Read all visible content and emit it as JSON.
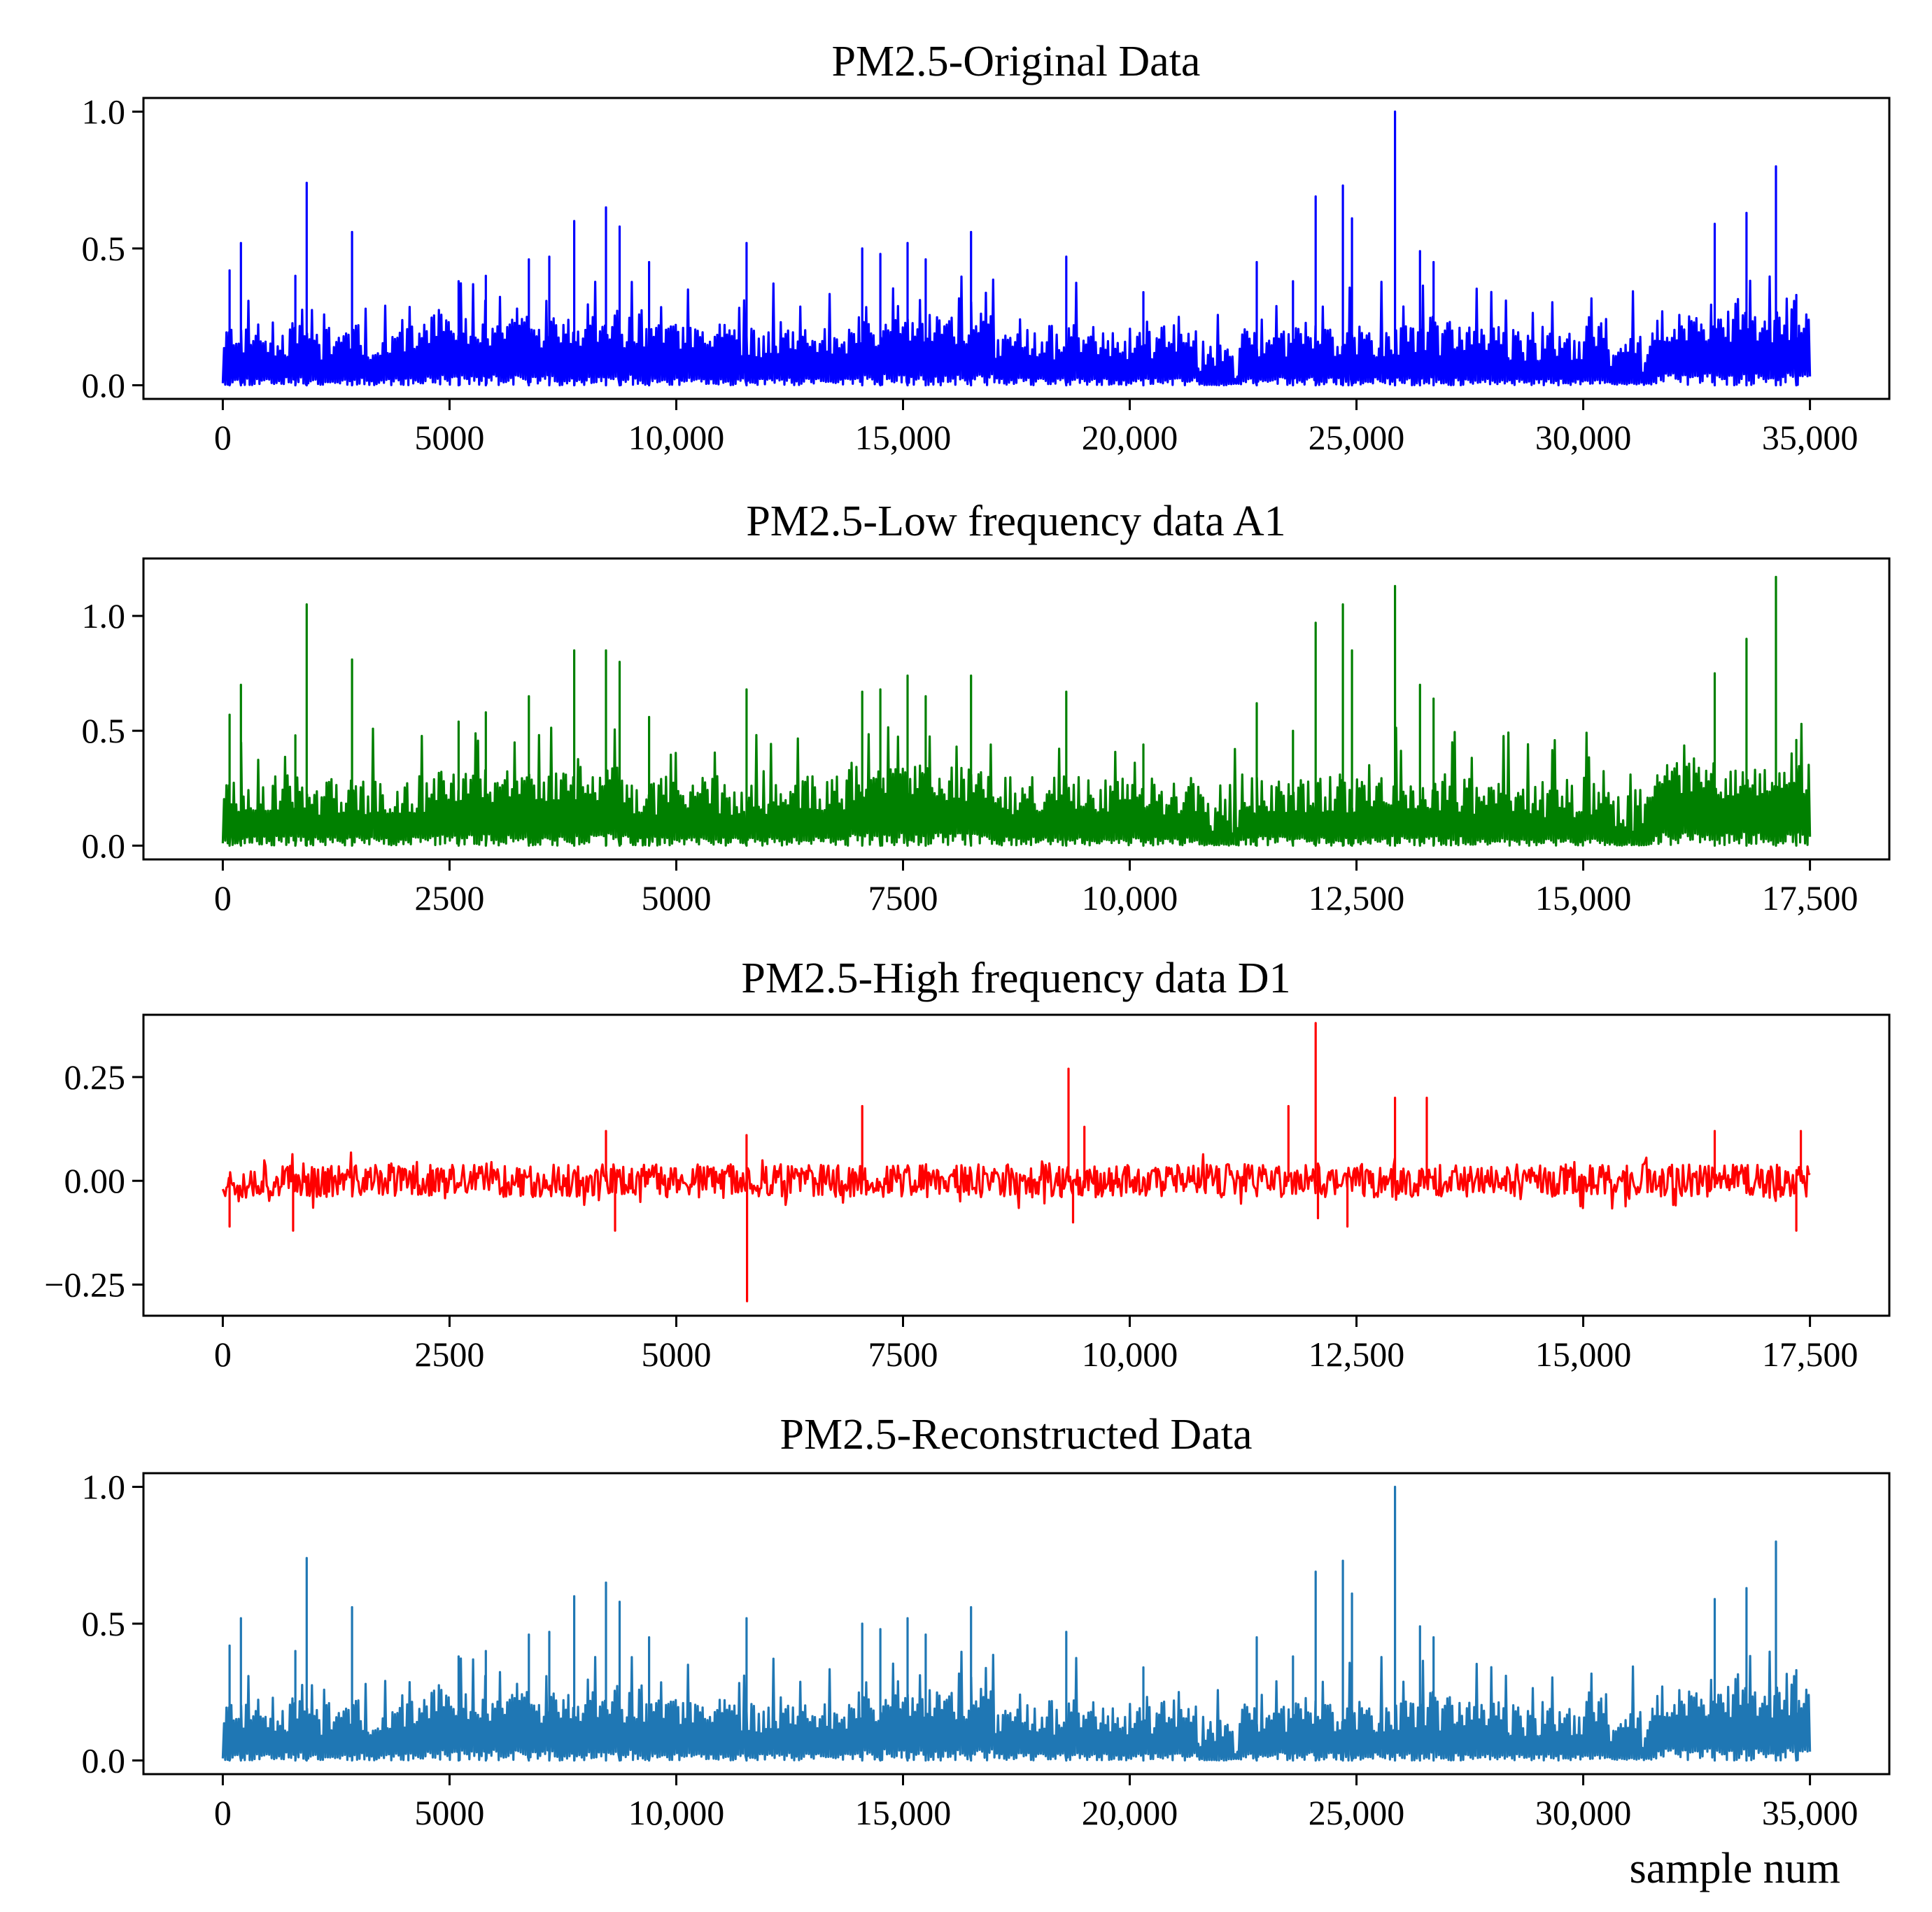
{
  "chart_data": [
    {
      "type": "line",
      "title": "PM2.5-Original Data",
      "color": "#0000ff",
      "xlim": [
        -1750,
        36750
      ],
      "ylim": [
        -0.05,
        1.05
      ],
      "xticks": [
        0,
        5000,
        10000,
        15000,
        20000,
        25000,
        30000,
        35000
      ],
      "xtick_labels": [
        "0",
        "5000",
        "10,000",
        "15,000",
        "20,000",
        "25,000",
        "30,000",
        "35,000"
      ],
      "yticks": [
        0.0,
        0.5,
        1.0
      ],
      "ytick_labels": [
        "0.0",
        "0.5",
        "1.0"
      ],
      "x_range": [
        0,
        35000
      ],
      "baseline": 0.0,
      "noise": {
        "lo": 0.0,
        "hi": 0.15,
        "seed": 11
      },
      "segments": [
        {
          "x": [
            0,
            2000
          ],
          "level": 0.1
        },
        {
          "x": [
            2000,
            4500
          ],
          "level": 0.09
        },
        {
          "x": [
            4500,
            9000
          ],
          "level": 0.13
        },
        {
          "x": [
            9000,
            13800
          ],
          "level": 0.09
        },
        {
          "x": [
            13800,
            17000
          ],
          "level": 0.14
        },
        {
          "x": [
            17000,
            21500
          ],
          "level": 0.09
        },
        {
          "x": [
            21500,
            22400
          ],
          "level": 0.02
        },
        {
          "x": [
            22400,
            27500
          ],
          "level": 0.1
        },
        {
          "x": [
            27500,
            30500
          ],
          "level": 0.08
        },
        {
          "x": [
            30500,
            31500
          ],
          "level": 0.04
        },
        {
          "x": [
            31500,
            35000
          ],
          "level": 0.15
        }
      ],
      "peaks": [
        {
          "x": 150,
          "y": 0.42
        },
        {
          "x": 400,
          "y": 0.52
        },
        {
          "x": 1600,
          "y": 0.4
        },
        {
          "x": 1850,
          "y": 0.74
        },
        {
          "x": 2850,
          "y": 0.56
        },
        {
          "x": 5200,
          "y": 0.38
        },
        {
          "x": 5800,
          "y": 0.4
        },
        {
          "x": 6750,
          "y": 0.46
        },
        {
          "x": 7200,
          "y": 0.47
        },
        {
          "x": 7750,
          "y": 0.6
        },
        {
          "x": 8450,
          "y": 0.65
        },
        {
          "x": 8750,
          "y": 0.58
        },
        {
          "x": 9400,
          "y": 0.45
        },
        {
          "x": 11550,
          "y": 0.52
        },
        {
          "x": 14100,
          "y": 0.5
        },
        {
          "x": 14500,
          "y": 0.48
        },
        {
          "x": 15100,
          "y": 0.52
        },
        {
          "x": 15500,
          "y": 0.46
        },
        {
          "x": 16500,
          "y": 0.56
        },
        {
          "x": 18600,
          "y": 0.47
        },
        {
          "x": 20300,
          "y": 0.34
        },
        {
          "x": 22800,
          "y": 0.45
        },
        {
          "x": 23600,
          "y": 0.38
        },
        {
          "x": 24100,
          "y": 0.69
        },
        {
          "x": 24700,
          "y": 0.73
        },
        {
          "x": 24900,
          "y": 0.61
        },
        {
          "x": 25850,
          "y": 1.0
        },
        {
          "x": 26400,
          "y": 0.49
        },
        {
          "x": 26700,
          "y": 0.45
        },
        {
          "x": 32900,
          "y": 0.59
        },
        {
          "x": 33600,
          "y": 0.63
        },
        {
          "x": 34250,
          "y": 0.8
        },
        {
          "x": 34700,
          "y": 0.33
        }
      ]
    },
    {
      "type": "line",
      "title": "PM2.5-Low frequency data A1",
      "color": "#008000",
      "xlim": [
        -875,
        18375
      ],
      "ylim": [
        -0.06,
        1.25
      ],
      "xticks": [
        0,
        2500,
        5000,
        7500,
        10000,
        12500,
        15000,
        17500
      ],
      "xtick_labels": [
        "0",
        "2500",
        "5000",
        "7500",
        "10,000",
        "12,500",
        "15,000",
        "17,500"
      ],
      "yticks": [
        0.0,
        0.5,
        1.0
      ],
      "ytick_labels": [
        "0.0",
        "0.5",
        "1.0"
      ],
      "x_range": [
        0,
        17500
      ],
      "baseline": 0.0,
      "noise": {
        "lo": 0.0,
        "hi": 0.2,
        "seed": 23
      },
      "segments": [
        {
          "x": [
            0,
            1000
          ],
          "level": 0.14
        },
        {
          "x": [
            1000,
            2250
          ],
          "level": 0.13
        },
        {
          "x": [
            2250,
            4500
          ],
          "level": 0.18
        },
        {
          "x": [
            4500,
            6900
          ],
          "level": 0.13
        },
        {
          "x": [
            6900,
            8500
          ],
          "level": 0.19
        },
        {
          "x": [
            8500,
            10750
          ],
          "level": 0.13
        },
        {
          "x": [
            10750,
            11200
          ],
          "level": 0.03
        },
        {
          "x": [
            11200,
            13750
          ],
          "level": 0.14
        },
        {
          "x": [
            13750,
            15250
          ],
          "level": 0.11
        },
        {
          "x": [
            15250,
            15750
          ],
          "level": 0.05
        },
        {
          "x": [
            15750,
            17500
          ],
          "level": 0.2
        }
      ],
      "peaks": [
        {
          "x": 75,
          "y": 0.57
        },
        {
          "x": 200,
          "y": 0.7
        },
        {
          "x": 800,
          "y": 0.48
        },
        {
          "x": 925,
          "y": 1.05
        },
        {
          "x": 1425,
          "y": 0.81
        },
        {
          "x": 2600,
          "y": 0.54
        },
        {
          "x": 2900,
          "y": 0.58
        },
        {
          "x": 3375,
          "y": 0.65
        },
        {
          "x": 3875,
          "y": 0.85
        },
        {
          "x": 4225,
          "y": 0.85
        },
        {
          "x": 4375,
          "y": 0.8
        },
        {
          "x": 4700,
          "y": 0.56
        },
        {
          "x": 5775,
          "y": 0.68
        },
        {
          "x": 7050,
          "y": 0.67
        },
        {
          "x": 7250,
          "y": 0.68
        },
        {
          "x": 7550,
          "y": 0.74
        },
        {
          "x": 7750,
          "y": 0.65
        },
        {
          "x": 8250,
          "y": 0.74
        },
        {
          "x": 9300,
          "y": 0.67
        },
        {
          "x": 10150,
          "y": 0.44
        },
        {
          "x": 11400,
          "y": 0.62
        },
        {
          "x": 11800,
          "y": 0.5
        },
        {
          "x": 12050,
          "y": 0.97
        },
        {
          "x": 12350,
          "y": 1.05
        },
        {
          "x": 12450,
          "y": 0.85
        },
        {
          "x": 12925,
          "y": 1.13
        },
        {
          "x": 13200,
          "y": 0.7
        },
        {
          "x": 13350,
          "y": 0.64
        },
        {
          "x": 16450,
          "y": 0.75
        },
        {
          "x": 16800,
          "y": 0.9
        },
        {
          "x": 17125,
          "y": 1.17
        },
        {
          "x": 17350,
          "y": 0.46
        }
      ]
    },
    {
      "type": "line",
      "title": "PM2.5-High frequency data D1",
      "color": "#ff0000",
      "xlim": [
        -875,
        18375
      ],
      "ylim": [
        -0.325,
        0.4
      ],
      "xticks": [
        0,
        2500,
        5000,
        7500,
        10000,
        12500,
        15000,
        17500
      ],
      "xtick_labels": [
        "0",
        "2500",
        "5000",
        "7500",
        "10,000",
        "12,500",
        "15,000",
        "17,500"
      ],
      "yticks": [
        -0.25,
        0.0,
        0.25
      ],
      "ytick_labels": [
        "−0.25",
        "0.00",
        "0.25"
      ],
      "x_range": [
        0,
        17500
      ],
      "baseline": 0.0,
      "noise": {
        "lo": -0.04,
        "hi": 0.04,
        "seed": 37
      },
      "segments": [],
      "peaks": [
        {
          "x": 75,
          "y": -0.11
        },
        {
          "x": 775,
          "y": -0.12
        },
        {
          "x": 4225,
          "y": 0.12
        },
        {
          "x": 4325,
          "y": -0.12
        },
        {
          "x": 5775,
          "y": 0.11
        },
        {
          "x": 5780,
          "y": -0.29
        },
        {
          "x": 7050,
          "y": 0.18
        },
        {
          "x": 9325,
          "y": 0.27
        },
        {
          "x": 9375,
          "y": -0.1
        },
        {
          "x": 9500,
          "y": 0.13
        },
        {
          "x": 11750,
          "y": 0.18
        },
        {
          "x": 12050,
          "y": 0.38
        },
        {
          "x": 12075,
          "y": -0.09
        },
        {
          "x": 12400,
          "y": -0.11
        },
        {
          "x": 12925,
          "y": 0.2
        },
        {
          "x": 13275,
          "y": 0.2
        },
        {
          "x": 16450,
          "y": 0.12
        },
        {
          "x": 17400,
          "y": 0.12
        },
        {
          "x": 17350,
          "y": -0.12
        }
      ]
    },
    {
      "type": "line",
      "title": "PM2.5-Reconstructed Data",
      "color": "#1f77b4",
      "xlim": [
        -1750,
        36750
      ],
      "ylim": [
        -0.05,
        1.05
      ],
      "xticks": [
        0,
        5000,
        10000,
        15000,
        20000,
        25000,
        30000,
        35000
      ],
      "xtick_labels": [
        "0",
        "5000",
        "10,000",
        "15,000",
        "20,000",
        "25,000",
        "30,000",
        "35,000"
      ],
      "yticks": [
        0.0,
        0.5,
        1.0
      ],
      "ytick_labels": [
        "0.0",
        "0.5",
        "1.0"
      ],
      "x_range": [
        0,
        35000
      ],
      "baseline": 0.0,
      "noise": {
        "lo": 0.0,
        "hi": 0.15,
        "seed": 11
      },
      "segments": [
        {
          "x": [
            0,
            2000
          ],
          "level": 0.1
        },
        {
          "x": [
            2000,
            4500
          ],
          "level": 0.09
        },
        {
          "x": [
            4500,
            9000
          ],
          "level": 0.13
        },
        {
          "x": [
            9000,
            13800
          ],
          "level": 0.09
        },
        {
          "x": [
            13800,
            17000
          ],
          "level": 0.14
        },
        {
          "x": [
            17000,
            21500
          ],
          "level": 0.09
        },
        {
          "x": [
            21500,
            22400
          ],
          "level": 0.02
        },
        {
          "x": [
            22400,
            27500
          ],
          "level": 0.1
        },
        {
          "x": [
            27500,
            30500
          ],
          "level": 0.08
        },
        {
          "x": [
            30500,
            31500
          ],
          "level": 0.04
        },
        {
          "x": [
            31500,
            35000
          ],
          "level": 0.15
        }
      ],
      "peaks": [
        {
          "x": 150,
          "y": 0.42
        },
        {
          "x": 400,
          "y": 0.52
        },
        {
          "x": 1600,
          "y": 0.4
        },
        {
          "x": 1850,
          "y": 0.74
        },
        {
          "x": 2850,
          "y": 0.56
        },
        {
          "x": 5200,
          "y": 0.38
        },
        {
          "x": 5800,
          "y": 0.4
        },
        {
          "x": 6750,
          "y": 0.46
        },
        {
          "x": 7200,
          "y": 0.47
        },
        {
          "x": 7750,
          "y": 0.6
        },
        {
          "x": 8450,
          "y": 0.65
        },
        {
          "x": 8750,
          "y": 0.58
        },
        {
          "x": 9400,
          "y": 0.45
        },
        {
          "x": 11550,
          "y": 0.52
        },
        {
          "x": 14100,
          "y": 0.5
        },
        {
          "x": 14500,
          "y": 0.48
        },
        {
          "x": 15100,
          "y": 0.52
        },
        {
          "x": 15500,
          "y": 0.46
        },
        {
          "x": 16500,
          "y": 0.56
        },
        {
          "x": 18600,
          "y": 0.47
        },
        {
          "x": 20300,
          "y": 0.34
        },
        {
          "x": 22800,
          "y": 0.45
        },
        {
          "x": 23600,
          "y": 0.38
        },
        {
          "x": 24100,
          "y": 0.69
        },
        {
          "x": 24700,
          "y": 0.73
        },
        {
          "x": 24900,
          "y": 0.61
        },
        {
          "x": 25850,
          "y": 1.0
        },
        {
          "x": 26400,
          "y": 0.49
        },
        {
          "x": 26700,
          "y": 0.45
        },
        {
          "x": 32900,
          "y": 0.59
        },
        {
          "x": 33600,
          "y": 0.63
        },
        {
          "x": 34250,
          "y": 0.8
        },
        {
          "x": 34700,
          "y": 0.33
        }
      ],
      "xlabel": "sample num"
    }
  ]
}
